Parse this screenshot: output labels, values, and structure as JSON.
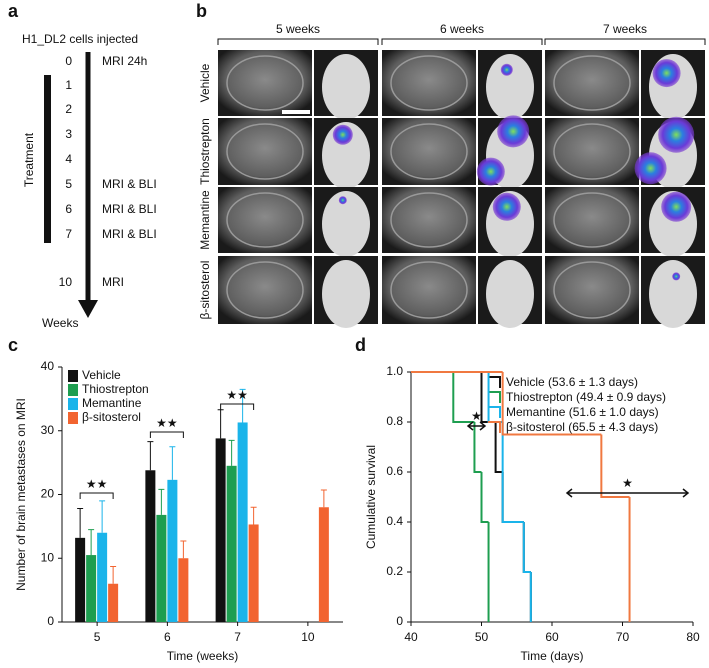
{
  "panel_labels": [
    "a",
    "b",
    "c",
    "d"
  ],
  "timeline": {
    "title": "H1_DL2 cells injected",
    "treatment": "Treatment",
    "axis": "Weeks",
    "rows": [
      {
        "week": "0",
        "label": "MRI 24h"
      },
      {
        "week": "1"
      },
      {
        "week": "2"
      },
      {
        "week": "3"
      },
      {
        "week": "4"
      },
      {
        "week": "5",
        "label": "MRI & BLI"
      },
      {
        "week": "6",
        "label": "MRI & BLI"
      },
      {
        "week": "7",
        "label": "MRI & BLI"
      },
      {
        "week": "10",
        "label": "MRI"
      }
    ]
  },
  "image_grid": {
    "columns": [
      "5 weeks",
      "6 weeks",
      "7 weeks"
    ],
    "rows": [
      "Vehicle",
      "Thiostrepton",
      "Memantine",
      "β-sitosterol"
    ]
  },
  "chart_data": [
    {
      "type": "bar",
      "ylabel": "Number of brain metastases on MRI",
      "xlabel": "Time (weeks)",
      "categories": [
        "5",
        "6",
        "7",
        "10"
      ],
      "ylim": [
        0,
        40
      ],
      "yticks": [
        0,
        10,
        20,
        30,
        40
      ],
      "series": [
        {
          "name": "Vehicle",
          "color": "#111111",
          "values": [
            13.2,
            23.8,
            28.8,
            null
          ],
          "errors": [
            4.6,
            4.5,
            4.5,
            null
          ]
        },
        {
          "name": "Thiostrepton",
          "color": "#1e9e50",
          "values": [
            10.5,
            16.8,
            24.5,
            null
          ],
          "errors": [
            4,
            4,
            4,
            null
          ]
        },
        {
          "name": "Memantine",
          "color": "#1ab4ea",
          "values": [
            14,
            22.3,
            31.3,
            null
          ],
          "errors": [
            5,
            5.2,
            5.2,
            null
          ]
        },
        {
          "name": "β-sitosterol",
          "color": "#f26430",
          "values": [
            6,
            10,
            15.3,
            18
          ],
          "errors": [
            2.7,
            2.7,
            2.7,
            2.7
          ]
        }
      ],
      "annotations": [
        "★★",
        "★★",
        "★★"
      ]
    },
    {
      "type": "step",
      "ylabel": "Cumulative survival",
      "xlabel": "Time (days)",
      "xlim": [
        40,
        80
      ],
      "xticks": [
        40,
        50,
        60,
        70,
        80
      ],
      "ylim": [
        0,
        1
      ],
      "yticks": [
        0,
        0.2,
        0.4,
        0.6,
        0.8,
        {
          "value": 1,
          "label": "1.0"
        }
      ],
      "series": [
        {
          "name": "Vehicle (53.6 ± 1.3 days)",
          "color": "#111111",
          "x": [
            40,
            50,
            52,
            53,
            56,
            57
          ],
          "y": [
            1,
            0.8,
            0.6,
            0.4,
            0.2,
            0
          ]
        },
        {
          "name": "Thiostrepton (49.4 ± 0.9 days)",
          "color": "#1e9e50",
          "x": [
            40,
            46,
            49,
            50,
            51
          ],
          "y": [
            1,
            0.8,
            0.6,
            0.4,
            0
          ]
        },
        {
          "name": "Memantine (51.6 ± 1.0 days)",
          "color": "#1ab4ea",
          "x": [
            40,
            51,
            53,
            56,
            57
          ],
          "y": [
            1,
            0.8,
            0.4,
            0.2,
            0
          ]
        },
        {
          "name": "β-sitosterol (65.5 ± 4.3 days)",
          "color": "#f07840",
          "x": [
            40,
            53,
            67,
            71
          ],
          "y": [
            1,
            0.75,
            0.5,
            0
          ]
        }
      ],
      "annotations": [
        "★",
        "★"
      ]
    }
  ]
}
